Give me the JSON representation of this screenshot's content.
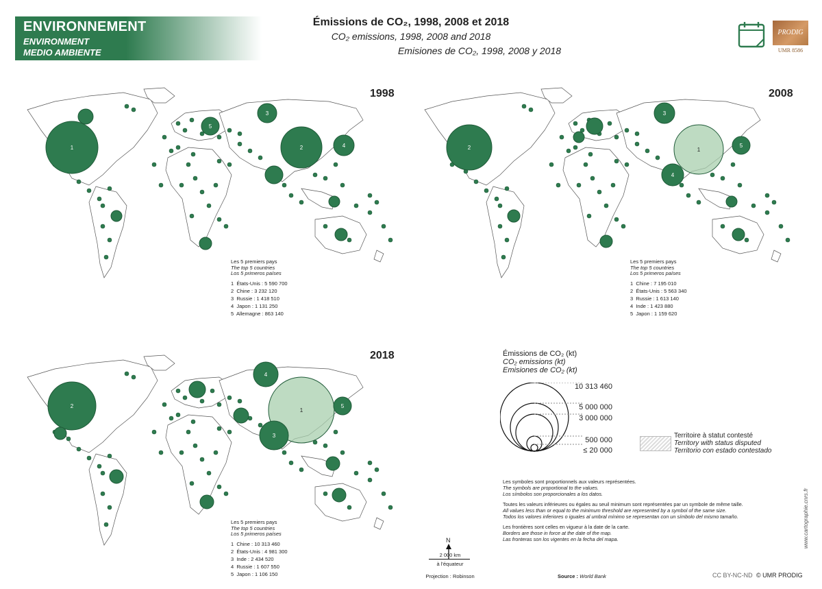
{
  "header": {
    "banner": [
      "ENVIRONNEMENT",
      "ENVIRONMENT",
      "MEDIO AMBIENTE"
    ],
    "title_fr": "Émissions de CO₂, 1998, 2008 et 2018",
    "title_en": "CO₂ emissions, 1998, 2008 and 2018",
    "title_es": "Emisiones de CO₂, 1998, 2008 y 2018",
    "logo_text": "PRODIG",
    "logo_sub": "UMR 8586",
    "icon": "calendar-icon"
  },
  "colors": {
    "symbol": "#2e7b4f",
    "symbol_light": "#a8cfae",
    "land_stroke": "#555555",
    "banner": "#2e7b4f"
  },
  "maps": [
    {
      "year": "1998",
      "top5_title": [
        "Les 5 premiers pays",
        "The top 5 countries",
        "Los 5 primeros países"
      ],
      "top5": [
        {
          "rank": "1",
          "label": "États-Unis : 5 590 700"
        },
        {
          "rank": "2",
          "label": "Chine : 3 232 120"
        },
        {
          "rank": "3",
          "label": "Russie : 1 418 510"
        },
        {
          "rank": "4",
          "label": "Japon : 1 131 250"
        },
        {
          "rank": "5",
          "label": "Allemagne : 863 140"
        }
      ]
    },
    {
      "year": "2008",
      "top5_title": [
        "Les 5 premiers pays",
        "The top 5 countries",
        "Los 5 primeros países"
      ],
      "top5": [
        {
          "rank": "1",
          "label": "Chine : 7 195 010"
        },
        {
          "rank": "2",
          "label": "États-Unis : 5 563 340"
        },
        {
          "rank": "3",
          "label": "Russie : 1 613 140"
        },
        {
          "rank": "4",
          "label": "Inde : 1 423 880"
        },
        {
          "rank": "5",
          "label": "Japon : 1 159 620"
        }
      ]
    },
    {
      "year": "2018",
      "top5_title": [
        "Les 5 premiers pays",
        "The top 5 countries",
        "Los 5 primeros países"
      ],
      "top5": [
        {
          "rank": "1",
          "label": "Chine : 10 313 460"
        },
        {
          "rank": "2",
          "label": "États-Unis : 4 981 300"
        },
        {
          "rank": "3",
          "label": "Inde : 2 434 520"
        },
        {
          "rank": "4",
          "label": "Russie : 1 607 550"
        },
        {
          "rank": "5",
          "label": "Japon : 1 106 150"
        }
      ]
    }
  ],
  "legend": {
    "title_fr": "Émissions de CO₂ (kt)",
    "title_en": "CO₂ emissions (kt)",
    "title_es": "Emisiones de CO₂ (kt)",
    "values": [
      "10 313 460",
      "5 000 000",
      "3 000 000",
      "500 000",
      "≤ 20 000"
    ],
    "disputed": [
      "Territoire à statut contesté",
      "Territory with status disputed",
      "Territorio con estado contestado"
    ]
  },
  "notes": [
    [
      "Les symboles sont proportionnels aux valeurs représentées.",
      "The symbols are proportional to the values.",
      "Los símbolos son proporcionales a los datos."
    ],
    [
      "Toutes les valeurs inférieures ou égales au seuil minimum sont représentées par un symbole de même taille.",
      "All values less than or equal to the minimum threshold are represented by a symbol of the same size.",
      "Todos los valores inferiores o iguales al umbral mínimo se representan con un símbolo del mismo tamaño."
    ],
    [
      "Les frontières sont celles en vigueur à la date de la carte.",
      "Borders are those in force at the date of the map.",
      "Las fronteras son los vigentes en la fecha del mapa."
    ]
  ],
  "footer": {
    "north": "N",
    "scale": "2 000 km",
    "scale_sub": "à l'équateur",
    "projection": "Projection : Robinson",
    "source_label": "Source :",
    "source": "World Bank",
    "license": "CC BY-NC-ND",
    "copyright": "© UMR PRODIG",
    "website": "www.cartographie.cnrs.fr"
  }
}
